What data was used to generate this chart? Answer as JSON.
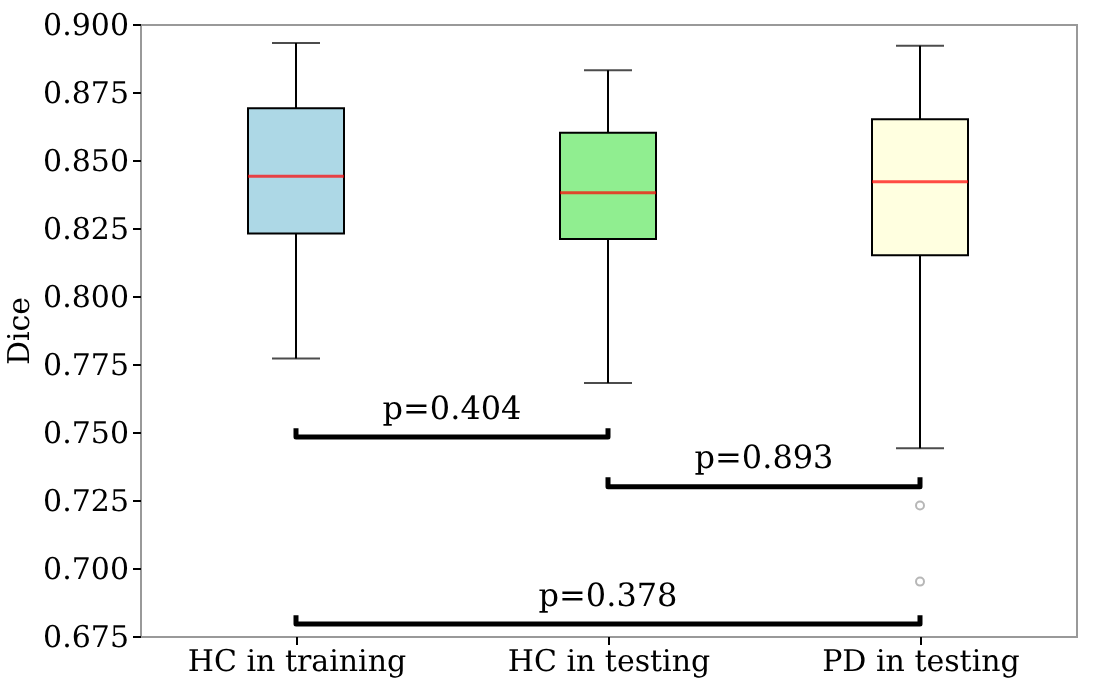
{
  "chart_data": {
    "type": "box",
    "ylabel": "Dice",
    "categories": [
      "HC in training",
      "HC in testing",
      "PD in testing"
    ],
    "colors": [
      "#add8e6",
      "#90ee90",
      "#ffffe0"
    ],
    "boxes": [
      {
        "low": 0.777,
        "q1": 0.823,
        "median": 0.844,
        "q3": 0.869,
        "high": 0.893
      },
      {
        "low": 0.768,
        "q1": 0.821,
        "median": 0.838,
        "q3": 0.86,
        "high": 0.883
      },
      {
        "low": 0.744,
        "q1": 0.815,
        "median": 0.842,
        "q3": 0.865,
        "high": 0.892,
        "outliers": [
          0.723,
          0.695
        ]
      }
    ],
    "ylim": [
      0.675,
      0.9
    ],
    "yticks": [
      {
        "value": 0.675,
        "label": "0.675"
      },
      {
        "value": 0.7,
        "label": "0.700"
      },
      {
        "value": 0.725,
        "label": "0.725"
      },
      {
        "value": 0.75,
        "label": "0.750"
      },
      {
        "value": 0.775,
        "label": "0.775"
      },
      {
        "value": 0.8,
        "label": "0.800"
      },
      {
        "value": 0.825,
        "label": "0.825"
      },
      {
        "value": 0.85,
        "label": "0.850"
      },
      {
        "value": 0.875,
        "label": "0.875"
      },
      {
        "value": 0.9,
        "label": "0.900"
      }
    ],
    "annotations": [
      "p=0.404",
      "p=0.893",
      "p=0.378"
    ],
    "grid": false,
    "marker": "circle"
  }
}
